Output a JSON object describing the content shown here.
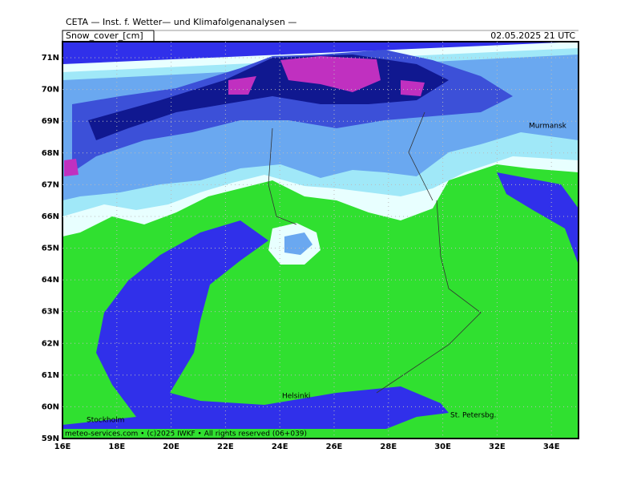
{
  "header": {
    "title": "CETA — Inst. f. Wetter— und Klimafolgenanalysen —",
    "field": "Snow_cover_[cm]",
    "valid_time": "02.05.2025 21 UTC"
  },
  "map": {
    "lat_labels": [
      "59N",
      "60N",
      "61N",
      "62N",
      "63N",
      "64N",
      "65N",
      "66N",
      "67N",
      "68N",
      "69N",
      "70N",
      "71N"
    ],
    "lon_labels": [
      "16E",
      "18E",
      "20E",
      "22E",
      "24E",
      "26E",
      "28E",
      "30E",
      "32E",
      "34E"
    ],
    "cities": [
      "Murmansk",
      "Helsinki",
      "Stockholm",
      "St. Petersbg."
    ]
  },
  "footer": "meteo-services.com • (c)2025 IWKF • All rights reserved (06+039)"
}
